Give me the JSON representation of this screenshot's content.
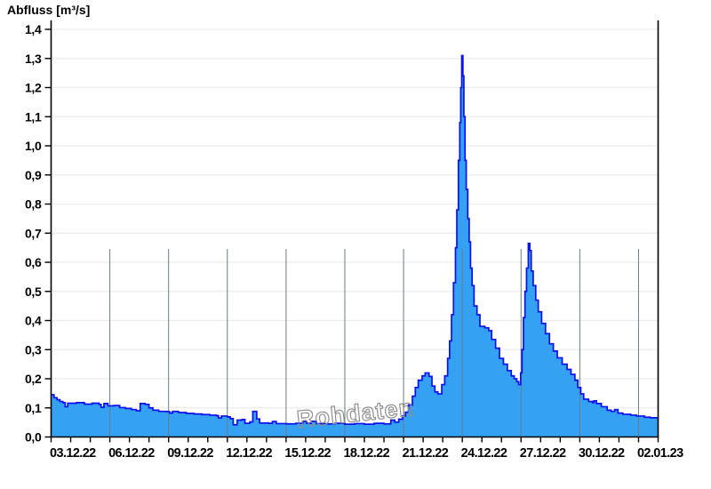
{
  "header": {
    "title": "Abfluss [m³/s]"
  },
  "watermark": {
    "text": "Rohdaten"
  },
  "colors": {
    "background": "#ffffff",
    "area_fill": "#35a1f2",
    "series_line": "#0a10ee",
    "vertical_gridline": "#6b7b87",
    "horizontal_gridline": "#ececec",
    "axis": "#000000",
    "tick_label": "#000000",
    "watermark_outline": "#8f8f8f"
  },
  "chart_data": {
    "type": "area",
    "title": "Abfluss [m³/s]",
    "ylabel": "Abfluss [m³/s]",
    "watermark": "Rohdaten",
    "step_interpolation": true,
    "legend": "none",
    "x_axis": {
      "range_days": [
        0,
        31
      ],
      "tick_labels": [
        "03.12.22",
        "06.12.22",
        "09.12.22",
        "12.12.22",
        "15.12.22",
        "18.12.22",
        "21.12.22",
        "24.12.22",
        "27.12.22",
        "30.12.22",
        "02.01.23"
      ],
      "tick_day_offsets": [
        0,
        3,
        6,
        9,
        12,
        15,
        18,
        21,
        24,
        27,
        30
      ],
      "minor_tick_every_days": 1,
      "vertical_gridline_day_offsets": [
        3,
        6,
        9,
        12,
        15,
        18,
        21,
        24,
        27,
        30
      ]
    },
    "y_axis": {
      "label": "Abfluss [m³/s]",
      "range": [
        0,
        1.4
      ],
      "tick_values": [
        0,
        0.1,
        0.2,
        0.3,
        0.4,
        0.5,
        0.6,
        0.7,
        0.8,
        0.9,
        1.0,
        1.1,
        1.2,
        1.3,
        1.4
      ],
      "tick_labels": [
        "0,0",
        "0,1",
        "0,2",
        "0,3",
        "0,4",
        "0,5",
        "0,6",
        "0,7",
        "0,8",
        "0,9",
        "1,0",
        "1,1",
        "1,2",
        "1,3",
        "1,4"
      ],
      "gridlines": true
    },
    "series": [
      {
        "name": "Rohdaten",
        "unit": "m³/s",
        "max_value": 1.31,
        "points": [
          [
            0,
            0.145
          ],
          [
            0.15,
            0.135
          ],
          [
            0.3,
            0.128
          ],
          [
            0.45,
            0.122
          ],
          [
            0.6,
            0.118
          ],
          [
            0.72,
            0.104
          ],
          [
            0.85,
            0.116
          ],
          [
            1.3,
            0.118
          ],
          [
            1.7,
            0.113
          ],
          [
            2.1,
            0.116
          ],
          [
            2.45,
            0.112
          ],
          [
            2.55,
            0.102
          ],
          [
            2.7,
            0.115
          ],
          [
            2.9,
            0.107
          ],
          [
            3.2,
            0.108
          ],
          [
            3.5,
            0.101
          ],
          [
            3.8,
            0.098
          ],
          [
            4.1,
            0.094
          ],
          [
            4.35,
            0.09
          ],
          [
            4.55,
            0.115
          ],
          [
            4.8,
            0.112
          ],
          [
            5.0,
            0.1
          ],
          [
            5.2,
            0.092
          ],
          [
            5.5,
            0.088
          ],
          [
            5.9,
            0.087
          ],
          [
            6.05,
            0.082
          ],
          [
            6.2,
            0.088
          ],
          [
            6.5,
            0.084
          ],
          [
            6.9,
            0.081
          ],
          [
            7.3,
            0.079
          ],
          [
            7.7,
            0.077
          ],
          [
            8.1,
            0.075
          ],
          [
            8.45,
            0.073
          ],
          [
            8.55,
            0.065
          ],
          [
            8.7,
            0.072
          ],
          [
            9.0,
            0.069
          ],
          [
            9.15,
            0.063
          ],
          [
            9.3,
            0.042
          ],
          [
            9.5,
            0.058
          ],
          [
            9.75,
            0.06
          ],
          [
            9.9,
            0.047
          ],
          [
            10.15,
            0.052
          ],
          [
            10.3,
            0.088
          ],
          [
            10.5,
            0.062
          ],
          [
            10.65,
            0.048
          ],
          [
            11.1,
            0.047
          ],
          [
            11.3,
            0.053
          ],
          [
            11.5,
            0.046
          ],
          [
            12.0,
            0.045
          ],
          [
            12.5,
            0.047
          ],
          [
            12.85,
            0.053
          ],
          [
            13.05,
            0.047
          ],
          [
            13.3,
            0.054
          ],
          [
            13.55,
            0.046
          ],
          [
            14.0,
            0.045
          ],
          [
            14.5,
            0.047
          ],
          [
            15.0,
            0.044
          ],
          [
            15.5,
            0.046
          ],
          [
            16.0,
            0.044
          ],
          [
            16.5,
            0.047
          ],
          [
            17.0,
            0.045
          ],
          [
            17.35,
            0.058
          ],
          [
            17.55,
            0.051
          ],
          [
            17.75,
            0.061
          ],
          [
            17.95,
            0.072
          ],
          [
            18.1,
            0.085
          ],
          [
            18.25,
            0.11
          ],
          [
            18.45,
            0.14
          ],
          [
            18.6,
            0.17
          ],
          [
            18.75,
            0.195
          ],
          [
            18.95,
            0.21
          ],
          [
            19.1,
            0.22
          ],
          [
            19.3,
            0.208
          ],
          [
            19.45,
            0.175
          ],
          [
            19.6,
            0.155
          ],
          [
            19.75,
            0.148
          ],
          [
            19.95,
            0.18
          ],
          [
            20.1,
            0.21
          ],
          [
            20.25,
            0.27
          ],
          [
            20.35,
            0.33
          ],
          [
            20.45,
            0.42
          ],
          [
            20.55,
            0.53
          ],
          [
            20.65,
            0.65
          ],
          [
            20.72,
            0.78
          ],
          [
            20.8,
            0.95
          ],
          [
            20.87,
            1.08
          ],
          [
            20.92,
            1.2
          ],
          [
            20.97,
            1.31
          ],
          [
            21.03,
            1.24
          ],
          [
            21.08,
            1.1
          ],
          [
            21.14,
            0.95
          ],
          [
            21.2,
            0.85
          ],
          [
            21.28,
            0.75
          ],
          [
            21.35,
            0.67
          ],
          [
            21.42,
            0.58
          ],
          [
            21.5,
            0.52
          ],
          [
            21.6,
            0.45
          ],
          [
            21.75,
            0.42
          ],
          [
            21.9,
            0.38
          ],
          [
            22.15,
            0.375
          ],
          [
            22.35,
            0.365
          ],
          [
            22.5,
            0.335
          ],
          [
            22.7,
            0.305
          ],
          [
            22.9,
            0.27
          ],
          [
            23.1,
            0.25
          ],
          [
            23.3,
            0.228
          ],
          [
            23.5,
            0.21
          ],
          [
            23.65,
            0.2
          ],
          [
            23.78,
            0.19
          ],
          [
            23.88,
            0.18
          ],
          [
            23.98,
            0.22
          ],
          [
            24.05,
            0.3
          ],
          [
            24.12,
            0.41
          ],
          [
            24.2,
            0.5
          ],
          [
            24.28,
            0.58
          ],
          [
            24.37,
            0.665
          ],
          [
            24.45,
            0.64
          ],
          [
            24.52,
            0.57
          ],
          [
            24.62,
            0.52
          ],
          [
            24.75,
            0.47
          ],
          [
            24.88,
            0.43
          ],
          [
            25.05,
            0.39
          ],
          [
            25.25,
            0.355
          ],
          [
            25.45,
            0.32
          ],
          [
            25.65,
            0.295
          ],
          [
            25.85,
            0.272
          ],
          [
            26.1,
            0.25
          ],
          [
            26.35,
            0.232
          ],
          [
            26.55,
            0.215
          ],
          [
            26.75,
            0.195
          ],
          [
            26.9,
            0.17
          ],
          [
            27.05,
            0.148
          ],
          [
            27.2,
            0.13
          ],
          [
            27.45,
            0.122
          ],
          [
            27.65,
            0.118
          ],
          [
            27.72,
            0.124
          ],
          [
            27.85,
            0.115
          ],
          [
            28.1,
            0.104
          ],
          [
            28.4,
            0.092
          ],
          [
            28.6,
            0.088
          ],
          [
            28.78,
            0.094
          ],
          [
            28.95,
            0.082
          ],
          [
            29.2,
            0.078
          ],
          [
            29.6,
            0.075
          ],
          [
            29.9,
            0.072
          ],
          [
            30.3,
            0.068
          ],
          [
            30.6,
            0.066
          ],
          [
            31,
            0.065
          ]
        ]
      }
    ]
  }
}
